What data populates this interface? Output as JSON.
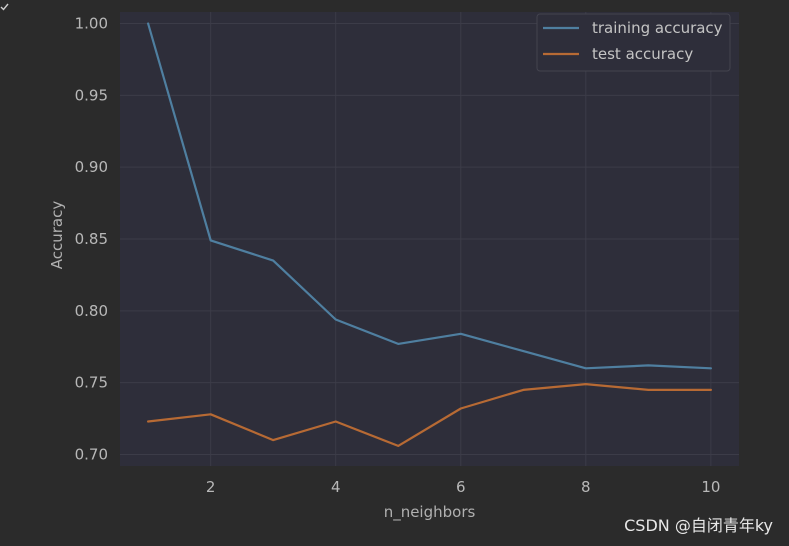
{
  "chart_data": {
    "type": "line",
    "title": "",
    "xlabel": "n_neighbors",
    "ylabel": "Accuracy",
    "x": [
      1,
      2,
      3,
      4,
      5,
      6,
      7,
      8,
      9,
      10
    ],
    "xlim": [
      0.55,
      10.45
    ],
    "ylim": [
      0.692,
      1.008
    ],
    "xticks": [
      2,
      4,
      6,
      8,
      10
    ],
    "yticks": [
      0.7,
      0.75,
      0.8,
      0.85,
      0.9,
      0.95,
      1.0
    ],
    "ytick_labels": [
      "0.70",
      "0.75",
      "0.80",
      "0.85",
      "0.90",
      "0.95",
      "1.00"
    ],
    "grid": true,
    "legend_position": "top-right",
    "series": [
      {
        "name": "training accuracy",
        "color": "#4f7fa0",
        "values": [
          1.0,
          0.849,
          0.835,
          0.794,
          0.777,
          0.784,
          0.772,
          0.76,
          0.762,
          0.76
        ]
      },
      {
        "name": "test accuracy",
        "color": "#b76a34",
        "values": [
          0.723,
          0.728,
          0.71,
          0.723,
          0.706,
          0.732,
          0.745,
          0.749,
          0.745,
          0.745
        ]
      }
    ]
  },
  "colors": {
    "figure_background": "#2b2b2b",
    "plot_background": "#2e2e3a",
    "grid": "#3c3c48"
  },
  "watermark": {
    "text": "CSDN @自闭青年ky"
  },
  "corner_icon": "check-icon"
}
